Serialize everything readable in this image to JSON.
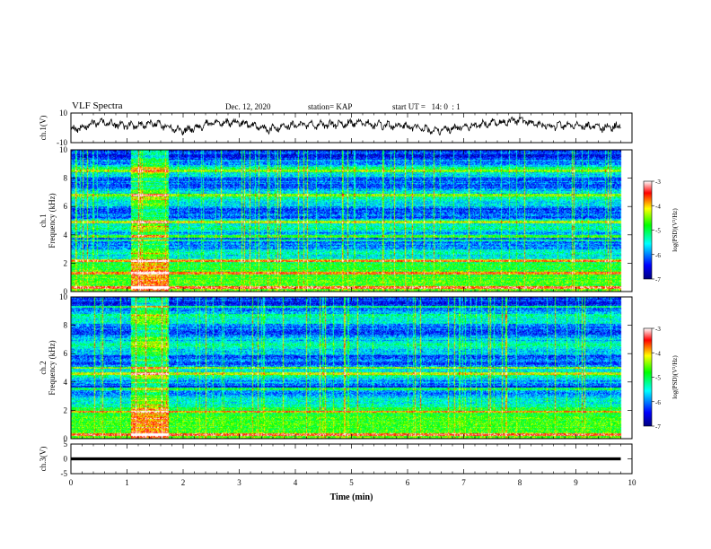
{
  "header": {
    "title": "VLF Spectra",
    "date": "Dec. 12, 2020",
    "station": "station= KAP",
    "start_ut": "start UT =   14: 0  : 1"
  },
  "axes": {
    "ch1_waveform_label": "ch.1(V)",
    "ch1_spec_label_1": "ch.1",
    "ch1_spec_label_2": "Frequency (kHz)",
    "ch2_spec_label_1": "ch.2",
    "ch2_spec_label_2": "Frequency (kHz)",
    "ch3_waveform_label": "ch.3(V)",
    "x_label": "Time (min)",
    "colorbar_label": "log(PSD)(V²/Hz)"
  },
  "colors": {
    "jet": [
      "#00007f",
      "#0000ff",
      "#00ffff",
      "#00ff00",
      "#ffff00",
      "#ff0000",
      "#ffffff"
    ],
    "axis": "#000000"
  },
  "chart_data": [
    {
      "type": "line",
      "name": "ch.1 waveform",
      "ylabel": "ch.1(V)",
      "ylim": [
        -10,
        10
      ],
      "yticks": [
        10,
        -10
      ],
      "xlim": [
        0,
        10
      ],
      "xticks": [
        0,
        1,
        2,
        3,
        4,
        5,
        6,
        7,
        8,
        9,
        10
      ],
      "data_end_min": 9.8,
      "x": [
        0,
        0.5,
        1.0,
        1.5,
        2.0,
        2.5,
        3.0,
        3.5,
        4.0,
        4.5,
        5.0,
        5.5,
        6.0,
        6.5,
        7.0,
        7.5,
        8.0,
        8.5,
        9.0,
        9.5,
        9.8
      ],
      "y": [
        -2,
        4,
        1,
        3,
        -2,
        3,
        4,
        -1,
        2,
        2,
        3,
        2,
        1,
        -2,
        1,
        3,
        5,
        1,
        2,
        0,
        1
      ]
    },
    {
      "type": "heatmap",
      "name": "ch.1 spectrogram",
      "ylabel": "Frequency (kHz)",
      "ylim": [
        0,
        10
      ],
      "yticks": [
        0,
        2,
        4,
        6,
        8,
        10
      ],
      "xlim": [
        0,
        10
      ],
      "xticks": [
        0,
        1,
        2,
        3,
        4,
        5,
        6,
        7,
        8,
        9,
        10
      ],
      "data_end_min": 9.8,
      "colorbar": {
        "label": "log(PSD)(V²/Hz)",
        "range": [
          -7,
          -3
        ],
        "ticks": [
          -3,
          -4,
          -5,
          -6,
          -7
        ]
      },
      "burst_min": [
        1.07,
        1.73
      ],
      "strong_bands_khz": [
        0.3,
        1.3,
        2.2,
        3.6,
        3.9,
        4.9,
        6.8,
        8.5
      ]
    },
    {
      "type": "heatmap",
      "name": "ch.2 spectrogram",
      "ylabel": "Frequency (kHz)",
      "ylim": [
        0,
        10
      ],
      "yticks": [
        0,
        2,
        4,
        6,
        8,
        10
      ],
      "xlim": [
        0,
        10
      ],
      "xticks": [
        0,
        1,
        2,
        3,
        4,
        5,
        6,
        7,
        8,
        9,
        10
      ],
      "data_end_min": 9.8,
      "colorbar": {
        "label": "log(PSD)(V²/Hz)",
        "range": [
          -7,
          -3
        ],
        "ticks": [
          -3,
          -4,
          -5,
          -6,
          -7
        ]
      },
      "burst_min": [
        1.07,
        1.73
      ],
      "strong_bands_khz": [
        0.3,
        1.9,
        3.5,
        4.6,
        5.0,
        9.3
      ]
    },
    {
      "type": "line",
      "name": "ch.3 waveform",
      "ylabel": "ch.3(V)",
      "ylim": [
        -5,
        5
      ],
      "yticks": [
        5,
        0,
        -5
      ],
      "xlim": [
        0,
        10
      ],
      "xticks": [
        0,
        1,
        2,
        3,
        4,
        5,
        6,
        7,
        8,
        9,
        10
      ],
      "xlabel": "Time (min)",
      "data_end_min": 9.8,
      "x": [
        0,
        9.8
      ],
      "y": [
        0,
        0
      ]
    }
  ]
}
